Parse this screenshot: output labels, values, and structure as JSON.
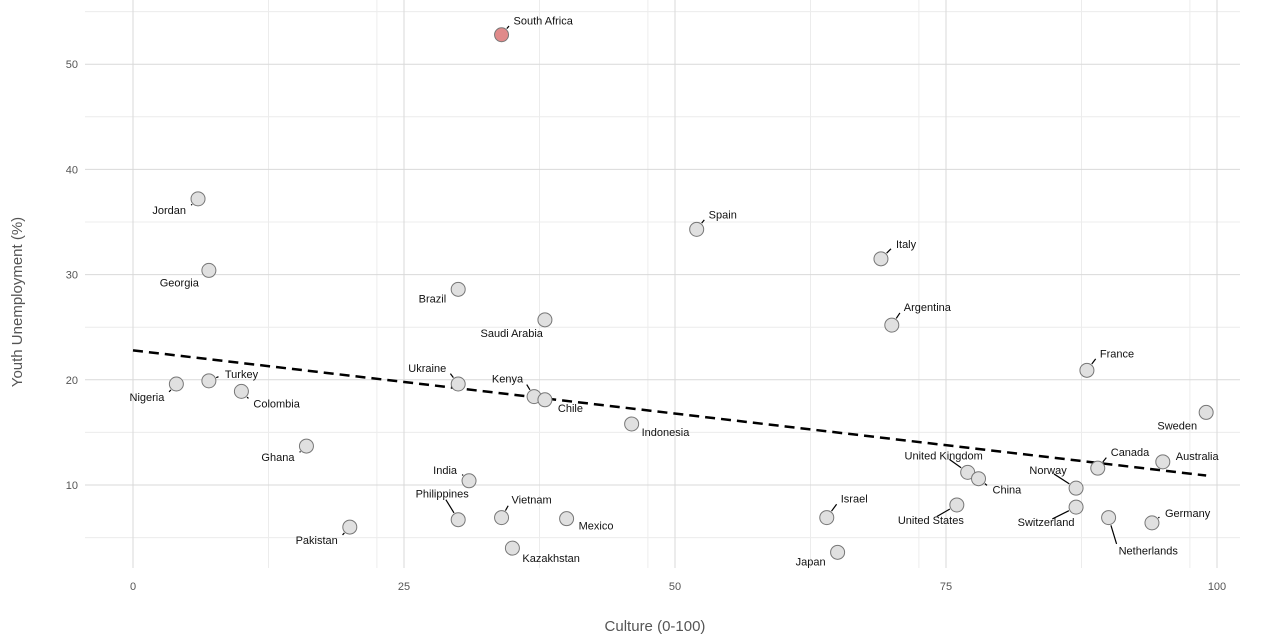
{
  "chart_data": {
    "type": "scatter",
    "title": "",
    "xlabel": "Culture (0-100)",
    "ylabel": "Youth Unemployment (%)",
    "xlim": [
      -2,
      102
    ],
    "ylim": [
      1.5,
      55.5
    ],
    "x_ticks": [
      0,
      25,
      50,
      75,
      100
    ],
    "y_ticks": [
      10,
      20,
      30,
      40,
      50
    ],
    "grid": true,
    "highlight_color": "#e08a8a",
    "point_color": "#e0e0e0",
    "trend_line": {
      "x": [
        0,
        99
      ],
      "y": [
        22.8,
        10.9
      ],
      "style": "dashed"
    },
    "points": [
      {
        "name": "South Africa",
        "x": 34,
        "y": 52.8,
        "highlight": true
      },
      {
        "name": "Jordan",
        "x": 6,
        "y": 37.2
      },
      {
        "name": "Spain",
        "x": 52,
        "y": 34.3
      },
      {
        "name": "Italy",
        "x": 69,
        "y": 31.5
      },
      {
        "name": "Georgia",
        "x": 7,
        "y": 30.4
      },
      {
        "name": "Brazil",
        "x": 30,
        "y": 28.6
      },
      {
        "name": "Saudi Arabia",
        "x": 38,
        "y": 25.7
      },
      {
        "name": "Argentina",
        "x": 70,
        "y": 25.2
      },
      {
        "name": "France",
        "x": 88,
        "y": 20.9
      },
      {
        "name": "Nigeria",
        "x": 4,
        "y": 19.6
      },
      {
        "name": "Turkey",
        "x": 7,
        "y": 19.9
      },
      {
        "name": "Ukraine",
        "x": 30,
        "y": 19.6
      },
      {
        "name": "Colombia",
        "x": 10,
        "y": 18.9
      },
      {
        "name": "Kenya",
        "x": 37,
        "y": 18.4
      },
      {
        "name": "Chile",
        "x": 38,
        "y": 18.1
      },
      {
        "name": "Sweden",
        "x": 99,
        "y": 16.9
      },
      {
        "name": "Indonesia",
        "x": 46,
        "y": 15.8
      },
      {
        "name": "Ghana",
        "x": 16,
        "y": 13.7
      },
      {
        "name": "Canada",
        "x": 89,
        "y": 11.6
      },
      {
        "name": "Australia",
        "x": 95,
        "y": 12.2
      },
      {
        "name": "United Kingdom",
        "x": 77,
        "y": 11.2
      },
      {
        "name": "China",
        "x": 78,
        "y": 10.6
      },
      {
        "name": "India",
        "x": 31,
        "y": 10.4
      },
      {
        "name": "Norway",
        "x": 87,
        "y": 9.7
      },
      {
        "name": "United States",
        "x": 76,
        "y": 8.1
      },
      {
        "name": "Switzerland",
        "x": 87,
        "y": 7.9
      },
      {
        "name": "Vietnam",
        "x": 34,
        "y": 6.9
      },
      {
        "name": "Philippines",
        "x": 30,
        "y": 6.7
      },
      {
        "name": "Mexico",
        "x": 40,
        "y": 6.8
      },
      {
        "name": "Israel",
        "x": 64,
        "y": 6.9
      },
      {
        "name": "Netherlands",
        "x": 90,
        "y": 6.9
      },
      {
        "name": "Germany",
        "x": 94,
        "y": 6.4
      },
      {
        "name": "Pakistan",
        "x": 20,
        "y": 6.0
      },
      {
        "name": "Kazakhstan",
        "x": 35,
        "y": 4.0
      },
      {
        "name": "Japan",
        "x": 65,
        "y": 3.6
      }
    ]
  }
}
